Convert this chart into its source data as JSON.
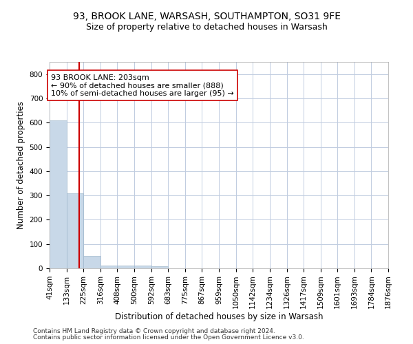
{
  "title_line1": "93, BROOK LANE, WARSASH, SOUTHAMPTON, SO31 9FE",
  "title_line2": "Size of property relative to detached houses in Warsash",
  "xlabel": "Distribution of detached houses by size in Warsash",
  "ylabel": "Number of detached properties",
  "bin_labels": [
    "41sqm",
    "133sqm",
    "225sqm",
    "316sqm",
    "408sqm",
    "500sqm",
    "592sqm",
    "683sqm",
    "775sqm",
    "867sqm",
    "959sqm",
    "1050sqm",
    "1142sqm",
    "1234sqm",
    "1326sqm",
    "1417sqm",
    "1509sqm",
    "1601sqm",
    "1693sqm",
    "1784sqm",
    "1876sqm"
  ],
  "bin_edges": [
    41,
    133,
    225,
    316,
    408,
    500,
    592,
    683,
    775,
    867,
    959,
    1050,
    1142,
    1234,
    1326,
    1417,
    1509,
    1601,
    1693,
    1784,
    1876
  ],
  "bar_heights": [
    610,
    310,
    50,
    12,
    12,
    12,
    8,
    0,
    0,
    0,
    0,
    0,
    0,
    0,
    0,
    0,
    0,
    0,
    0,
    0
  ],
  "bar_color": "#c8d8e8",
  "bar_edgecolor": "#a0b8cc",
  "property_size": 203,
  "vline_color": "#cc0000",
  "annotation_text": "93 BROOK LANE: 203sqm\n← 90% of detached houses are smaller (888)\n10% of semi-detached houses are larger (95) →",
  "annotation_box_edgecolor": "#cc0000",
  "annotation_box_facecolor": "#ffffff",
  "ylim": [
    0,
    850
  ],
  "yticks": [
    0,
    100,
    200,
    300,
    400,
    500,
    600,
    700,
    800
  ],
  "footer_line1": "Contains HM Land Registry data © Crown copyright and database right 2024.",
  "footer_line2": "Contains public sector information licensed under the Open Government Licence v3.0.",
  "background_color": "#ffffff",
  "grid_color": "#c0cce0",
  "title1_fontsize": 10,
  "title2_fontsize": 9,
  "axis_label_fontsize": 8.5,
  "tick_fontsize": 7.5,
  "annotation_fontsize": 8,
  "footer_fontsize": 6.5
}
